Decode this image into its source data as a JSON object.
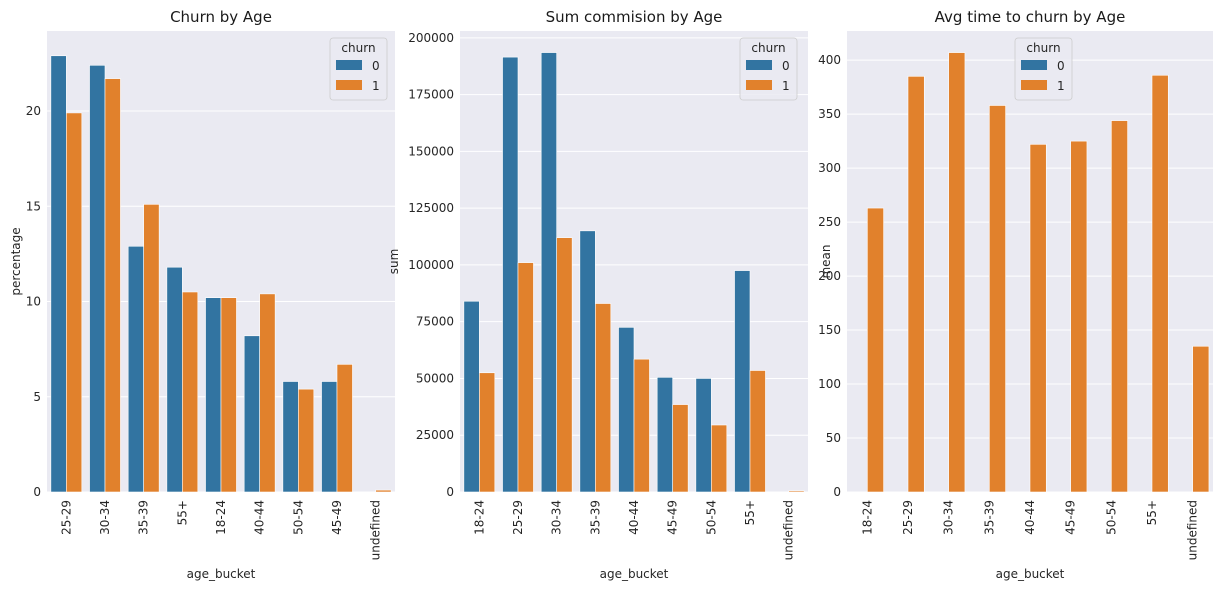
{
  "colors": {
    "churn_0": "#3274a1",
    "churn_1": "#e1812c",
    "panel_bg": "#eaeaf2",
    "grid": "#ffffff"
  },
  "chart_data": [
    {
      "type": "bar",
      "title": "Churn by Age",
      "xlabel": "age_bucket",
      "ylabel": "percentage",
      "categories": [
        "25-29",
        "30-34",
        "35-39",
        "55+",
        "18-24",
        "40-44",
        "50-54",
        "45-49",
        "undefined"
      ],
      "series": [
        {
          "name": "0",
          "values": [
            22.9,
            22.4,
            12.9,
            11.8,
            10.2,
            8.2,
            5.8,
            5.8,
            null
          ]
        },
        {
          "name": "1",
          "values": [
            19.9,
            21.7,
            15.1,
            10.5,
            10.2,
            10.4,
            5.4,
            6.7,
            0.1
          ]
        }
      ],
      "ylim": [
        0,
        24.2
      ],
      "yticks": [
        0,
        5,
        10,
        15,
        20
      ],
      "legend": {
        "title": "churn",
        "position": "top-right"
      },
      "grid": true
    },
    {
      "type": "bar",
      "title": "Sum commision by Age",
      "xlabel": "age_bucket",
      "ylabel": "sum",
      "categories": [
        "18-24",
        "25-29",
        "30-34",
        "35-39",
        "40-44",
        "45-49",
        "50-54",
        "55+",
        "undefined"
      ],
      "series": [
        {
          "name": "0",
          "values": [
            84000,
            191500,
            193500,
            115000,
            72500,
            50500,
            50000,
            97500,
            null
          ]
        },
        {
          "name": "1",
          "values": [
            52500,
            101000,
            112000,
            83000,
            58500,
            38500,
            29500,
            53500,
            500
          ]
        }
      ],
      "ylim": [
        0,
        203000
      ],
      "yticks": [
        0,
        25000,
        50000,
        75000,
        100000,
        125000,
        150000,
        175000,
        200000
      ],
      "legend": {
        "title": "churn",
        "position": "top-right"
      },
      "grid": true
    },
    {
      "type": "bar",
      "title": "Avg time to churn by Age",
      "xlabel": "age_bucket",
      "ylabel": "mean",
      "categories": [
        "18-24",
        "25-29",
        "30-34",
        "35-39",
        "40-44",
        "45-49",
        "50-54",
        "55+",
        "undefined"
      ],
      "series": [
        {
          "name": "0",
          "values": [
            null,
            null,
            null,
            null,
            null,
            null,
            null,
            null,
            null
          ]
        },
        {
          "name": "1",
          "values": [
            263,
            385,
            407,
            358,
            322,
            325,
            344,
            386,
            135
          ]
        }
      ],
      "ylim": [
        0,
        427
      ],
      "yticks": [
        0,
        50,
        100,
        150,
        200,
        250,
        300,
        350,
        400
      ],
      "legend": {
        "title": "churn",
        "position": "top-center"
      },
      "grid": true
    }
  ]
}
